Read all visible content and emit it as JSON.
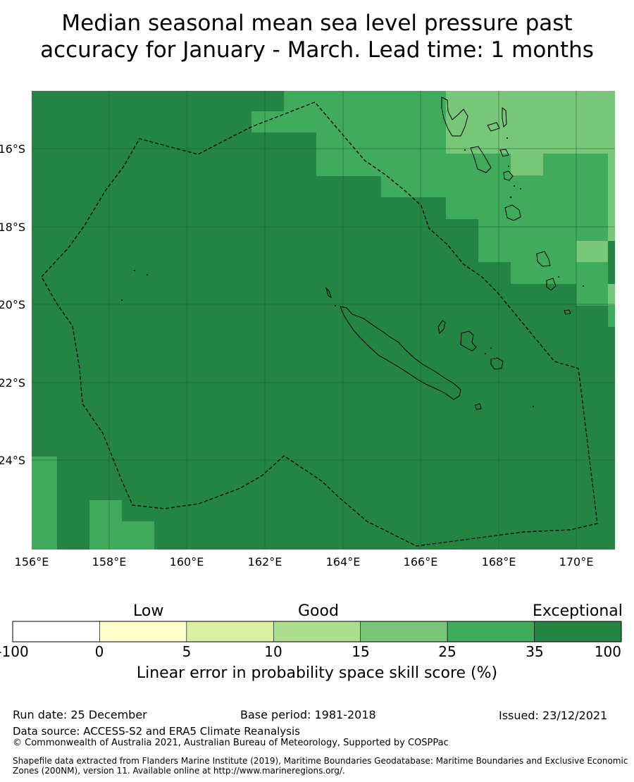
{
  "title": {
    "line1": "Median seasonal mean sea level pressure past",
    "line2": "accuracy for January - March. Lead time: 1 months"
  },
  "map": {
    "lon_labels": [
      "156°E",
      "158°E",
      "160°E",
      "162°E",
      "164°E",
      "166°E",
      "168°E",
      "170°E"
    ],
    "lat_labels": [
      "16°S",
      "18°S",
      "20°S",
      "22°S",
      "24°S"
    ],
    "colors": {
      "exceptional": "#238443",
      "class_25_35": "#41ab5d",
      "class_15_25": "#78c679",
      "boundary": "#000000"
    }
  },
  "colorbar": {
    "categories": [
      "Low",
      "Good",
      "Exceptional"
    ],
    "ticks": [
      "-100",
      "0",
      "5",
      "10",
      "15",
      "25",
      "35",
      "100"
    ],
    "colors": [
      "#ffffff",
      "#ffffcc",
      "#d9f0a3",
      "#addd8e",
      "#78c679",
      "#41ab5d",
      "#238443"
    ],
    "label": "Linear error in probability space skill score (%)"
  },
  "footer": {
    "run_date": "Run date: 25 December",
    "base_period": "Base period: 1981-2018",
    "issued": "Issued: 23/12/2021",
    "data_source": "Data source: ACCESS-S2 and ERA5 Climate Reanalysis",
    "copyright": "© Commonwealth of Australia 2021, Australian Bureau of Meteorology, Supported by COSPPac",
    "shapefile": "Shapefile data extracted from Flanders Marine Institute (2019), Maritime Boundaries Geodatabase: Maritime Boundaries and Exclusive Economic Zones (200NM), version 11. Available online at http://www.marineregions.org/."
  }
}
